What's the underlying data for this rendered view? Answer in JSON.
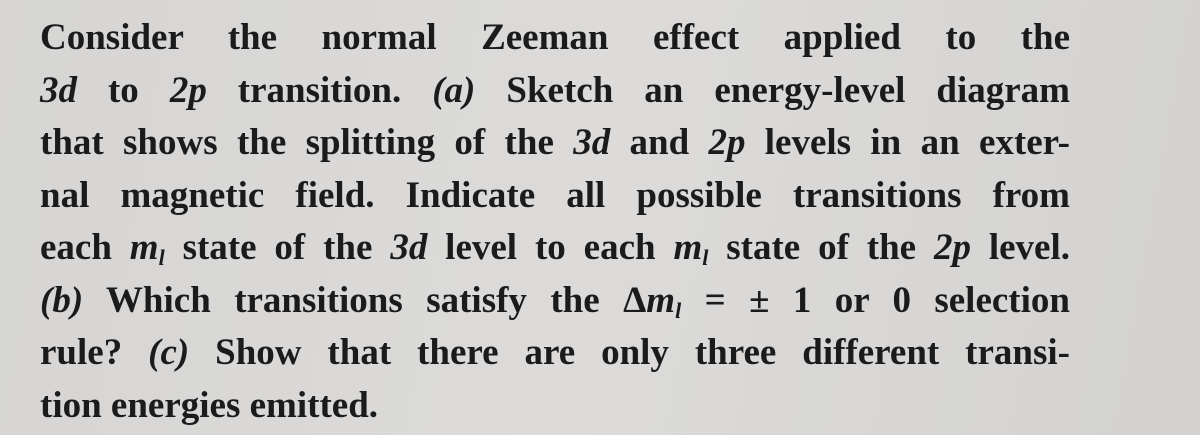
{
  "problem": {
    "lines": [
      [
        {
          "text": "Consider the normal Zeeman effect applied to the",
          "style": "roman"
        }
      ],
      [
        {
          "text": "3d",
          "style": "italic"
        },
        {
          "text": " to ",
          "style": "roman"
        },
        {
          "text": "2p",
          "style": "italic"
        },
        {
          "text": " transition. ",
          "style": "roman"
        },
        {
          "text": "(a)",
          "style": "italic"
        },
        {
          "text": " Sketch an energy-level diagram",
          "style": "roman"
        }
      ],
      [
        {
          "text": "that shows the splitting of the ",
          "style": "roman"
        },
        {
          "text": "3d",
          "style": "italic"
        },
        {
          "text": " and ",
          "style": "roman"
        },
        {
          "text": "2p",
          "style": "italic"
        },
        {
          "text": " levels in an exter-",
          "style": "roman"
        }
      ],
      [
        {
          "text": "nal magnetic field. Indicate all possible transitions from",
          "style": "roman"
        }
      ],
      [
        {
          "text": "each ",
          "style": "roman"
        },
        {
          "text": "m",
          "style": "italic"
        },
        {
          "text": "l",
          "style": "sub"
        },
        {
          "text": " state of the ",
          "style": "roman"
        },
        {
          "text": "3d",
          "style": "italic"
        },
        {
          "text": " level to each ",
          "style": "roman"
        },
        {
          "text": "m",
          "style": "italic"
        },
        {
          "text": "l",
          "style": "sub"
        },
        {
          "text": " state of the ",
          "style": "roman"
        },
        {
          "text": "2p",
          "style": "italic"
        },
        {
          "text": " level.",
          "style": "roman"
        }
      ],
      [
        {
          "text": "(b)",
          "style": "italic"
        },
        {
          "text": " Which transitions satisfy the Δ",
          "style": "roman"
        },
        {
          "text": "m",
          "style": "italic"
        },
        {
          "text": "l",
          "style": "sub"
        },
        {
          "text": " = ± 1 or 0 selection",
          "style": "roman"
        }
      ],
      [
        {
          "text": "rule? ",
          "style": "roman"
        },
        {
          "text": "(c)",
          "style": "italic"
        },
        {
          "text": " Show that there are only three different transi-",
          "style": "roman"
        }
      ],
      [
        {
          "text": "tion energies emitted.",
          "style": "roman"
        }
      ]
    ]
  }
}
